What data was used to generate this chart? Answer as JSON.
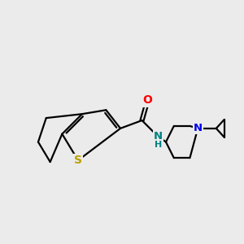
{
  "background_color": "#ebebeb",
  "bond_color": "#000000",
  "atom_colors": {
    "S": "#b8a000",
    "O": "#ff0000",
    "N_amide": "#008080",
    "H": "#008080",
    "N_pip": "#0000ee"
  },
  "line_width": 1.6,
  "figsize": [
    3.0,
    3.0
  ],
  "dpi": 100
}
